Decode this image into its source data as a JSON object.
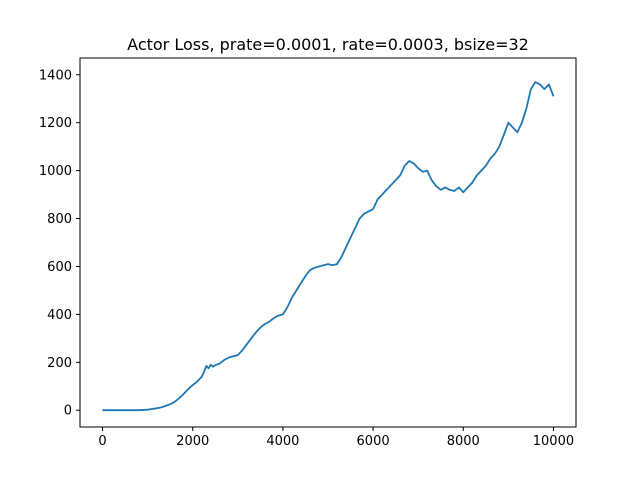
{
  "chart_data": {
    "type": "line",
    "title": "Actor Loss, prate=0.0001, rate=0.0003, bsize=32",
    "xlabel": "",
    "ylabel": "",
    "xlim": [
      -500,
      10500
    ],
    "ylim": [
      -70,
      1470
    ],
    "x_ticks": [
      0,
      2000,
      4000,
      6000,
      8000,
      10000
    ],
    "y_ticks": [
      0,
      200,
      400,
      600,
      800,
      1000,
      1200,
      1400
    ],
    "grid": false,
    "line_color": "#1f77b4",
    "series": [
      {
        "name": "actor_loss",
        "x": [
          0,
          200,
          400,
          600,
          800,
          1000,
          1100,
          1200,
          1300,
          1400,
          1500,
          1600,
          1700,
          1800,
          1900,
          2000,
          2100,
          2200,
          2250,
          2300,
          2350,
          2400,
          2450,
          2500,
          2600,
          2700,
          2800,
          2900,
          3000,
          3100,
          3200,
          3300,
          3400,
          3500,
          3600,
          3700,
          3800,
          3900,
          4000,
          4100,
          4200,
          4300,
          4400,
          4500,
          4600,
          4700,
          4800,
          4900,
          5000,
          5100,
          5200,
          5300,
          5400,
          5500,
          5600,
          5700,
          5800,
          5900,
          6000,
          6100,
          6200,
          6300,
          6400,
          6500,
          6600,
          6700,
          6800,
          6900,
          7000,
          7100,
          7200,
          7300,
          7400,
          7500,
          7600,
          7700,
          7800,
          7900,
          8000,
          8100,
          8200,
          8300,
          8400,
          8500,
          8600,
          8700,
          8800,
          8900,
          9000,
          9100,
          9200,
          9300,
          9400,
          9500,
          9600,
          9700,
          9800,
          9900,
          10000
        ],
        "values": [
          0,
          0,
          0,
          0,
          0,
          2,
          5,
          8,
          12,
          18,
          25,
          35,
          50,
          68,
          88,
          105,
          120,
          140,
          160,
          185,
          175,
          190,
          182,
          188,
          195,
          210,
          220,
          225,
          230,
          250,
          275,
          300,
          325,
          345,
          360,
          370,
          385,
          395,
          400,
          430,
          470,
          500,
          530,
          560,
          585,
          595,
          600,
          605,
          610,
          605,
          610,
          640,
          680,
          720,
          760,
          800,
          820,
          830,
          840,
          880,
          900,
          920,
          940,
          960,
          980,
          1020,
          1040,
          1030,
          1010,
          995,
          1000,
          960,
          935,
          920,
          930,
          920,
          915,
          930,
          910,
          930,
          950,
          980,
          1000,
          1020,
          1050,
          1070,
          1100,
          1150,
          1200,
          1180,
          1160,
          1200,
          1260,
          1340,
          1370,
          1360,
          1340,
          1360,
          1310
        ]
      }
    ]
  }
}
